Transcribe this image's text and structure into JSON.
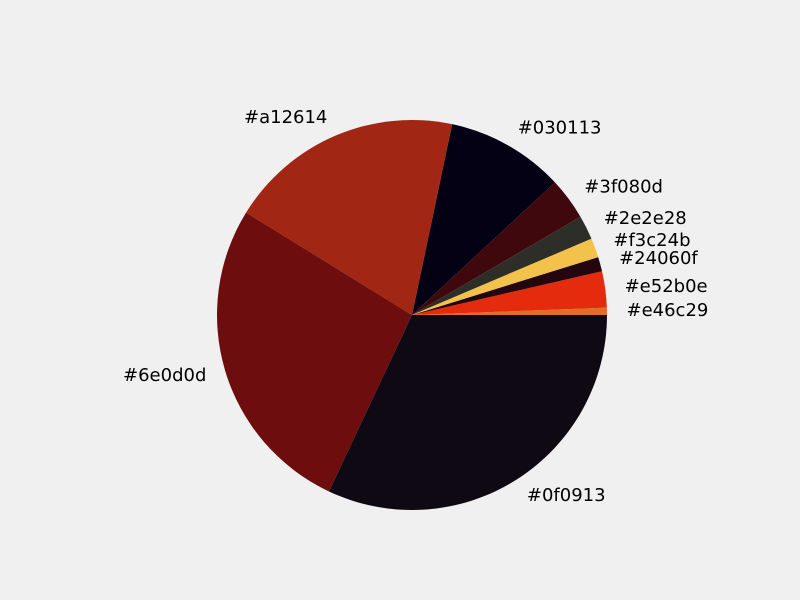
{
  "chart_data": {
    "type": "pie",
    "title": "",
    "start_angle_deg": 0,
    "direction": "counterclockwise",
    "slices": [
      {
        "label": "#e46c29",
        "value": 0.6,
        "color": "#e46c29"
      },
      {
        "label": "#e52b0e",
        "value": 3.0,
        "color": "#e52b0e"
      },
      {
        "label": "#24060f",
        "value": 1.2,
        "color": "#24060f"
      },
      {
        "label": "#f3c24b",
        "value": 1.6,
        "color": "#f3c24b"
      },
      {
        "label": "#2e2e28",
        "value": 2.0,
        "color": "#2e2e28"
      },
      {
        "label": "#3f080d",
        "value": 3.5,
        "color": "#3f080d"
      },
      {
        "label": "#030113",
        "value": 9.8,
        "color": "#030113"
      },
      {
        "label": "#a12614",
        "value": 19.5,
        "color": "#a12614"
      },
      {
        "label": "#6e0d0d",
        "value": 26.8,
        "color": "#6e0d0d"
      },
      {
        "label": "#0f0913",
        "value": 32.0,
        "color": "#0f0913"
      }
    ]
  }
}
